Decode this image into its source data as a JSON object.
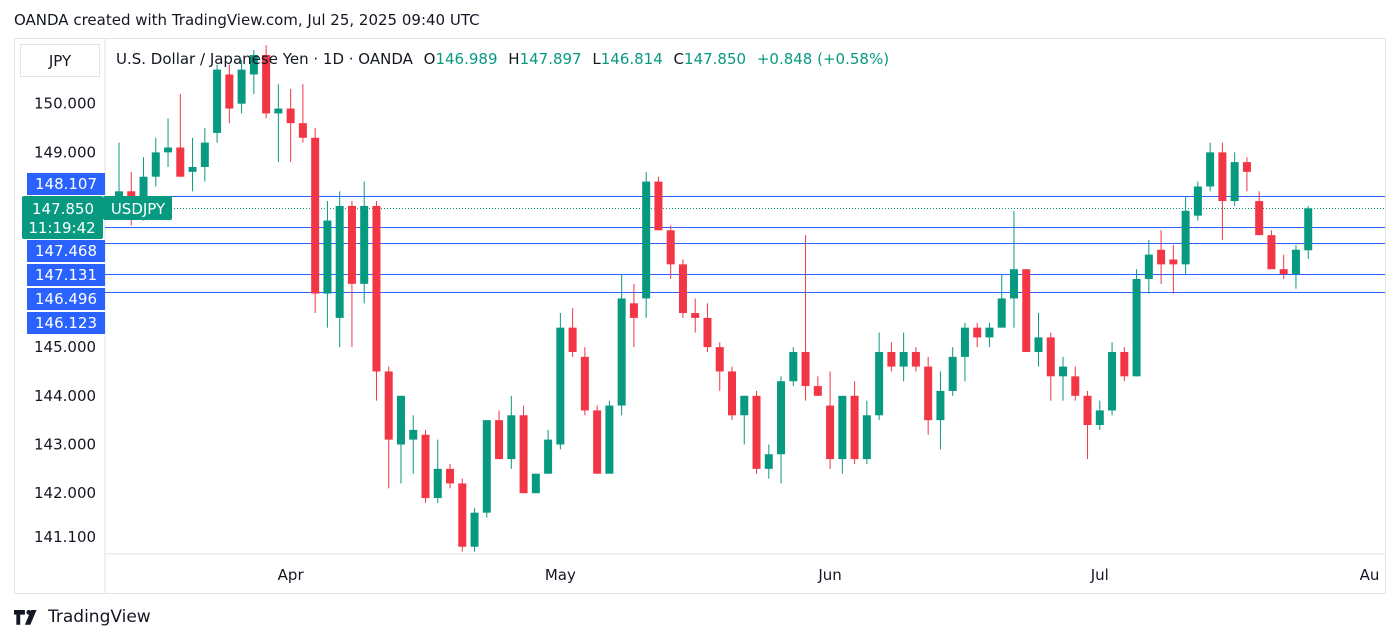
{
  "caption": "OANDA created with TradingView.com, Jul 25, 2025 09:40 UTC",
  "symbol_box": "JPY",
  "legend": {
    "name": "U.S. Dollar / Japanese Yen · 1D · OANDA",
    "o_label": "O",
    "o": "146.989",
    "h_label": "H",
    "h": "147.897",
    "l_label": "L",
    "l": "146.814",
    "c_label": "C",
    "c": "147.850",
    "change": "+0.848 (+0.58%)"
  },
  "price_tag": {
    "label": "USDJPY",
    "price": "147.850",
    "countdown": "11:19:42"
  },
  "brand": "TradingView",
  "colors": {
    "up": "#089981",
    "down": "#f23645",
    "level": "#2962ff",
    "grid": "#e0e3eb"
  },
  "chart_data": {
    "type": "candlestick",
    "title": "U.S. Dollar / Japanese Yen · 1D · OANDA",
    "ylim": [
      140.8,
      151.1
    ],
    "y_ticks": [
      "150.000",
      "149.000",
      "145.000",
      "144.000",
      "143.000",
      "142.000",
      "141.100"
    ],
    "x_ticks": [
      {
        "label": "Apr",
        "index": 14
      },
      {
        "label": "May",
        "index": 36
      },
      {
        "label": "Jun",
        "index": 58
      },
      {
        "label": "Jul",
        "index": 80
      },
      {
        "label": "Au",
        "index": 102
      }
    ],
    "horizontal_levels": [
      {
        "label": "148.107",
        "value": 148.107
      },
      {
        "label": "147.468",
        "value": 147.468
      },
      {
        "label": "147.131",
        "value": 147.131
      },
      {
        "label": "146.496",
        "value": 146.496
      },
      {
        "label": "146.123",
        "value": 146.123
      }
    ],
    "last_price": 147.85,
    "candles": [
      {
        "o": 148.1,
        "h": 149.2,
        "l": 147.8,
        "c": 148.2
      },
      {
        "o": 148.2,
        "h": 148.6,
        "l": 147.5,
        "c": 148.0
      },
      {
        "o": 148.0,
        "h": 148.9,
        "l": 147.6,
        "c": 148.5
      },
      {
        "o": 148.5,
        "h": 149.3,
        "l": 148.3,
        "c": 149.0
      },
      {
        "o": 149.0,
        "h": 149.7,
        "l": 148.7,
        "c": 149.1
      },
      {
        "o": 149.1,
        "h": 150.2,
        "l": 148.5,
        "c": 148.5
      },
      {
        "o": 148.6,
        "h": 149.3,
        "l": 148.2,
        "c": 148.7
      },
      {
        "o": 148.7,
        "h": 149.5,
        "l": 148.4,
        "c": 149.2
      },
      {
        "o": 149.4,
        "h": 150.8,
        "l": 149.2,
        "c": 150.7
      },
      {
        "o": 150.6,
        "h": 150.8,
        "l": 149.6,
        "c": 149.9
      },
      {
        "o": 150.0,
        "h": 150.9,
        "l": 149.8,
        "c": 150.7
      },
      {
        "o": 150.6,
        "h": 151.1,
        "l": 150.2,
        "c": 151.0
      },
      {
        "o": 151.0,
        "h": 151.2,
        "l": 149.7,
        "c": 149.8
      },
      {
        "o": 149.8,
        "h": 150.4,
        "l": 148.8,
        "c": 149.9
      },
      {
        "o": 149.9,
        "h": 150.3,
        "l": 148.8,
        "c": 149.6
      },
      {
        "o": 149.6,
        "h": 150.4,
        "l": 149.2,
        "c": 149.3
      },
      {
        "o": 149.3,
        "h": 149.5,
        "l": 145.7,
        "c": 146.1
      },
      {
        "o": 146.1,
        "h": 148.0,
        "l": 145.4,
        "c": 147.6
      },
      {
        "o": 145.6,
        "h": 148.2,
        "l": 145.0,
        "c": 147.9
      },
      {
        "o": 147.9,
        "h": 148.0,
        "l": 145.0,
        "c": 146.3
      },
      {
        "o": 146.3,
        "h": 148.4,
        "l": 145.9,
        "c": 147.9
      },
      {
        "o": 147.9,
        "h": 148.0,
        "l": 143.9,
        "c": 144.5
      },
      {
        "o": 144.5,
        "h": 144.6,
        "l": 142.1,
        "c": 143.1
      },
      {
        "o": 143.0,
        "h": 144.0,
        "l": 142.2,
        "c": 144.0
      },
      {
        "o": 143.1,
        "h": 143.6,
        "l": 142.4,
        "c": 143.3
      },
      {
        "o": 143.2,
        "h": 143.3,
        "l": 141.8,
        "c": 141.9
      },
      {
        "o": 141.9,
        "h": 143.1,
        "l": 141.8,
        "c": 142.5
      },
      {
        "o": 142.5,
        "h": 142.6,
        "l": 142.1,
        "c": 142.2
      },
      {
        "o": 142.2,
        "h": 142.3,
        "l": 140.8,
        "c": 140.9
      },
      {
        "o": 140.9,
        "h": 141.7,
        "l": 140.8,
        "c": 141.6
      },
      {
        "o": 141.6,
        "h": 143.5,
        "l": 141.5,
        "c": 143.5
      },
      {
        "o": 143.5,
        "h": 143.7,
        "l": 142.8,
        "c": 142.7
      },
      {
        "o": 142.7,
        "h": 144.0,
        "l": 142.5,
        "c": 143.6
      },
      {
        "o": 143.6,
        "h": 143.8,
        "l": 142.0,
        "c": 142.0
      },
      {
        "o": 142.0,
        "h": 142.4,
        "l": 142.0,
        "c": 142.4
      },
      {
        "o": 142.4,
        "h": 143.3,
        "l": 142.4,
        "c": 143.1
      },
      {
        "o": 143.0,
        "h": 145.7,
        "l": 142.9,
        "c": 145.4
      },
      {
        "o": 145.4,
        "h": 145.8,
        "l": 144.8,
        "c": 144.9
      },
      {
        "o": 144.8,
        "h": 145.0,
        "l": 143.6,
        "c": 143.7
      },
      {
        "o": 143.7,
        "h": 143.8,
        "l": 142.4,
        "c": 142.4
      },
      {
        "o": 142.4,
        "h": 143.9,
        "l": 142.5,
        "c": 143.8
      },
      {
        "o": 143.8,
        "h": 146.5,
        "l": 143.6,
        "c": 146.0
      },
      {
        "o": 145.9,
        "h": 146.3,
        "l": 145.0,
        "c": 145.6
      },
      {
        "o": 146.0,
        "h": 148.6,
        "l": 145.6,
        "c": 148.4
      },
      {
        "o": 148.4,
        "h": 148.5,
        "l": 147.4,
        "c": 147.4
      },
      {
        "o": 147.4,
        "h": 147.5,
        "l": 146.4,
        "c": 146.7
      },
      {
        "o": 146.7,
        "h": 146.8,
        "l": 145.6,
        "c": 145.7
      },
      {
        "o": 145.7,
        "h": 146.0,
        "l": 145.3,
        "c": 145.6
      },
      {
        "o": 145.6,
        "h": 145.9,
        "l": 144.9,
        "c": 145.0
      },
      {
        "o": 145.0,
        "h": 145.1,
        "l": 144.1,
        "c": 144.5
      },
      {
        "o": 144.5,
        "h": 144.6,
        "l": 143.5,
        "c": 143.6
      },
      {
        "o": 143.6,
        "h": 144.0,
        "l": 143.0,
        "c": 144.0
      },
      {
        "o": 144.0,
        "h": 144.1,
        "l": 142.4,
        "c": 142.5
      },
      {
        "o": 142.5,
        "h": 143.0,
        "l": 142.3,
        "c": 142.8
      },
      {
        "o": 142.8,
        "h": 144.4,
        "l": 142.2,
        "c": 144.3
      },
      {
        "o": 144.3,
        "h": 145.0,
        "l": 144.2,
        "c": 144.9
      },
      {
        "o": 144.9,
        "h": 147.3,
        "l": 143.9,
        "c": 144.2
      },
      {
        "o": 144.2,
        "h": 144.4,
        "l": 144.0,
        "c": 144.0
      },
      {
        "o": 143.8,
        "h": 144.5,
        "l": 142.5,
        "c": 142.7
      },
      {
        "o": 142.7,
        "h": 144.0,
        "l": 142.4,
        "c": 144.0
      },
      {
        "o": 144.0,
        "h": 144.3,
        "l": 142.6,
        "c": 142.7
      },
      {
        "o": 142.7,
        "h": 143.9,
        "l": 142.6,
        "c": 143.6
      },
      {
        "o": 143.6,
        "h": 145.3,
        "l": 143.5,
        "c": 144.9
      },
      {
        "o": 144.9,
        "h": 145.1,
        "l": 144.5,
        "c": 144.6
      },
      {
        "o": 144.6,
        "h": 145.3,
        "l": 144.3,
        "c": 144.9
      },
      {
        "o": 144.9,
        "h": 145.0,
        "l": 144.5,
        "c": 144.6
      },
      {
        "o": 144.6,
        "h": 144.8,
        "l": 143.2,
        "c": 143.5
      },
      {
        "o": 143.5,
        "h": 144.5,
        "l": 142.9,
        "c": 144.1
      },
      {
        "o": 144.1,
        "h": 145.0,
        "l": 144.0,
        "c": 144.8
      },
      {
        "o": 144.8,
        "h": 145.5,
        "l": 144.3,
        "c": 145.4
      },
      {
        "o": 145.4,
        "h": 145.5,
        "l": 145.0,
        "c": 145.2
      },
      {
        "o": 145.2,
        "h": 145.5,
        "l": 145.0,
        "c": 145.4
      },
      {
        "o": 145.4,
        "h": 146.5,
        "l": 145.4,
        "c": 146.0
      },
      {
        "o": 146.0,
        "h": 147.8,
        "l": 145.4,
        "c": 146.6
      },
      {
        "o": 146.6,
        "h": 146.6,
        "l": 144.9,
        "c": 144.9
      },
      {
        "o": 144.9,
        "h": 145.7,
        "l": 144.6,
        "c": 145.2
      },
      {
        "o": 145.2,
        "h": 145.3,
        "l": 143.9,
        "c": 144.4
      },
      {
        "o": 144.4,
        "h": 144.8,
        "l": 143.9,
        "c": 144.6
      },
      {
        "o": 144.4,
        "h": 144.6,
        "l": 143.9,
        "c": 144.0
      },
      {
        "o": 144.0,
        "h": 144.1,
        "l": 142.7,
        "c": 143.4
      },
      {
        "o": 143.4,
        "h": 143.9,
        "l": 143.3,
        "c": 143.7
      },
      {
        "o": 143.7,
        "h": 145.1,
        "l": 143.6,
        "c": 144.9
      },
      {
        "o": 144.9,
        "h": 145.0,
        "l": 144.3,
        "c": 144.4
      },
      {
        "o": 144.4,
        "h": 146.6,
        "l": 144.4,
        "c": 146.4
      },
      {
        "o": 146.4,
        "h": 147.2,
        "l": 146.1,
        "c": 146.9
      },
      {
        "o": 147.0,
        "h": 147.4,
        "l": 146.3,
        "c": 146.7
      },
      {
        "o": 146.8,
        "h": 147.1,
        "l": 146.1,
        "c": 146.7
      },
      {
        "o": 146.7,
        "h": 148.1,
        "l": 146.5,
        "c": 147.8
      },
      {
        "o": 147.7,
        "h": 148.4,
        "l": 147.6,
        "c": 148.3
      },
      {
        "o": 148.3,
        "h": 149.2,
        "l": 148.2,
        "c": 149.0
      },
      {
        "o": 149.0,
        "h": 149.2,
        "l": 147.2,
        "c": 148.0
      },
      {
        "o": 148.0,
        "h": 149.0,
        "l": 147.9,
        "c": 148.8
      },
      {
        "o": 148.8,
        "h": 148.9,
        "l": 148.2,
        "c": 148.6
      },
      {
        "o": 148.0,
        "h": 148.2,
        "l": 147.3,
        "c": 147.3
      },
      {
        "o": 147.3,
        "h": 147.4,
        "l": 146.7,
        "c": 146.6
      },
      {
        "o": 146.6,
        "h": 146.9,
        "l": 146.4,
        "c": 146.5
      },
      {
        "o": 146.5,
        "h": 147.1,
        "l": 146.2,
        "c": 147.0
      },
      {
        "o": 146.989,
        "h": 147.897,
        "l": 146.814,
        "c": 147.85
      }
    ]
  }
}
